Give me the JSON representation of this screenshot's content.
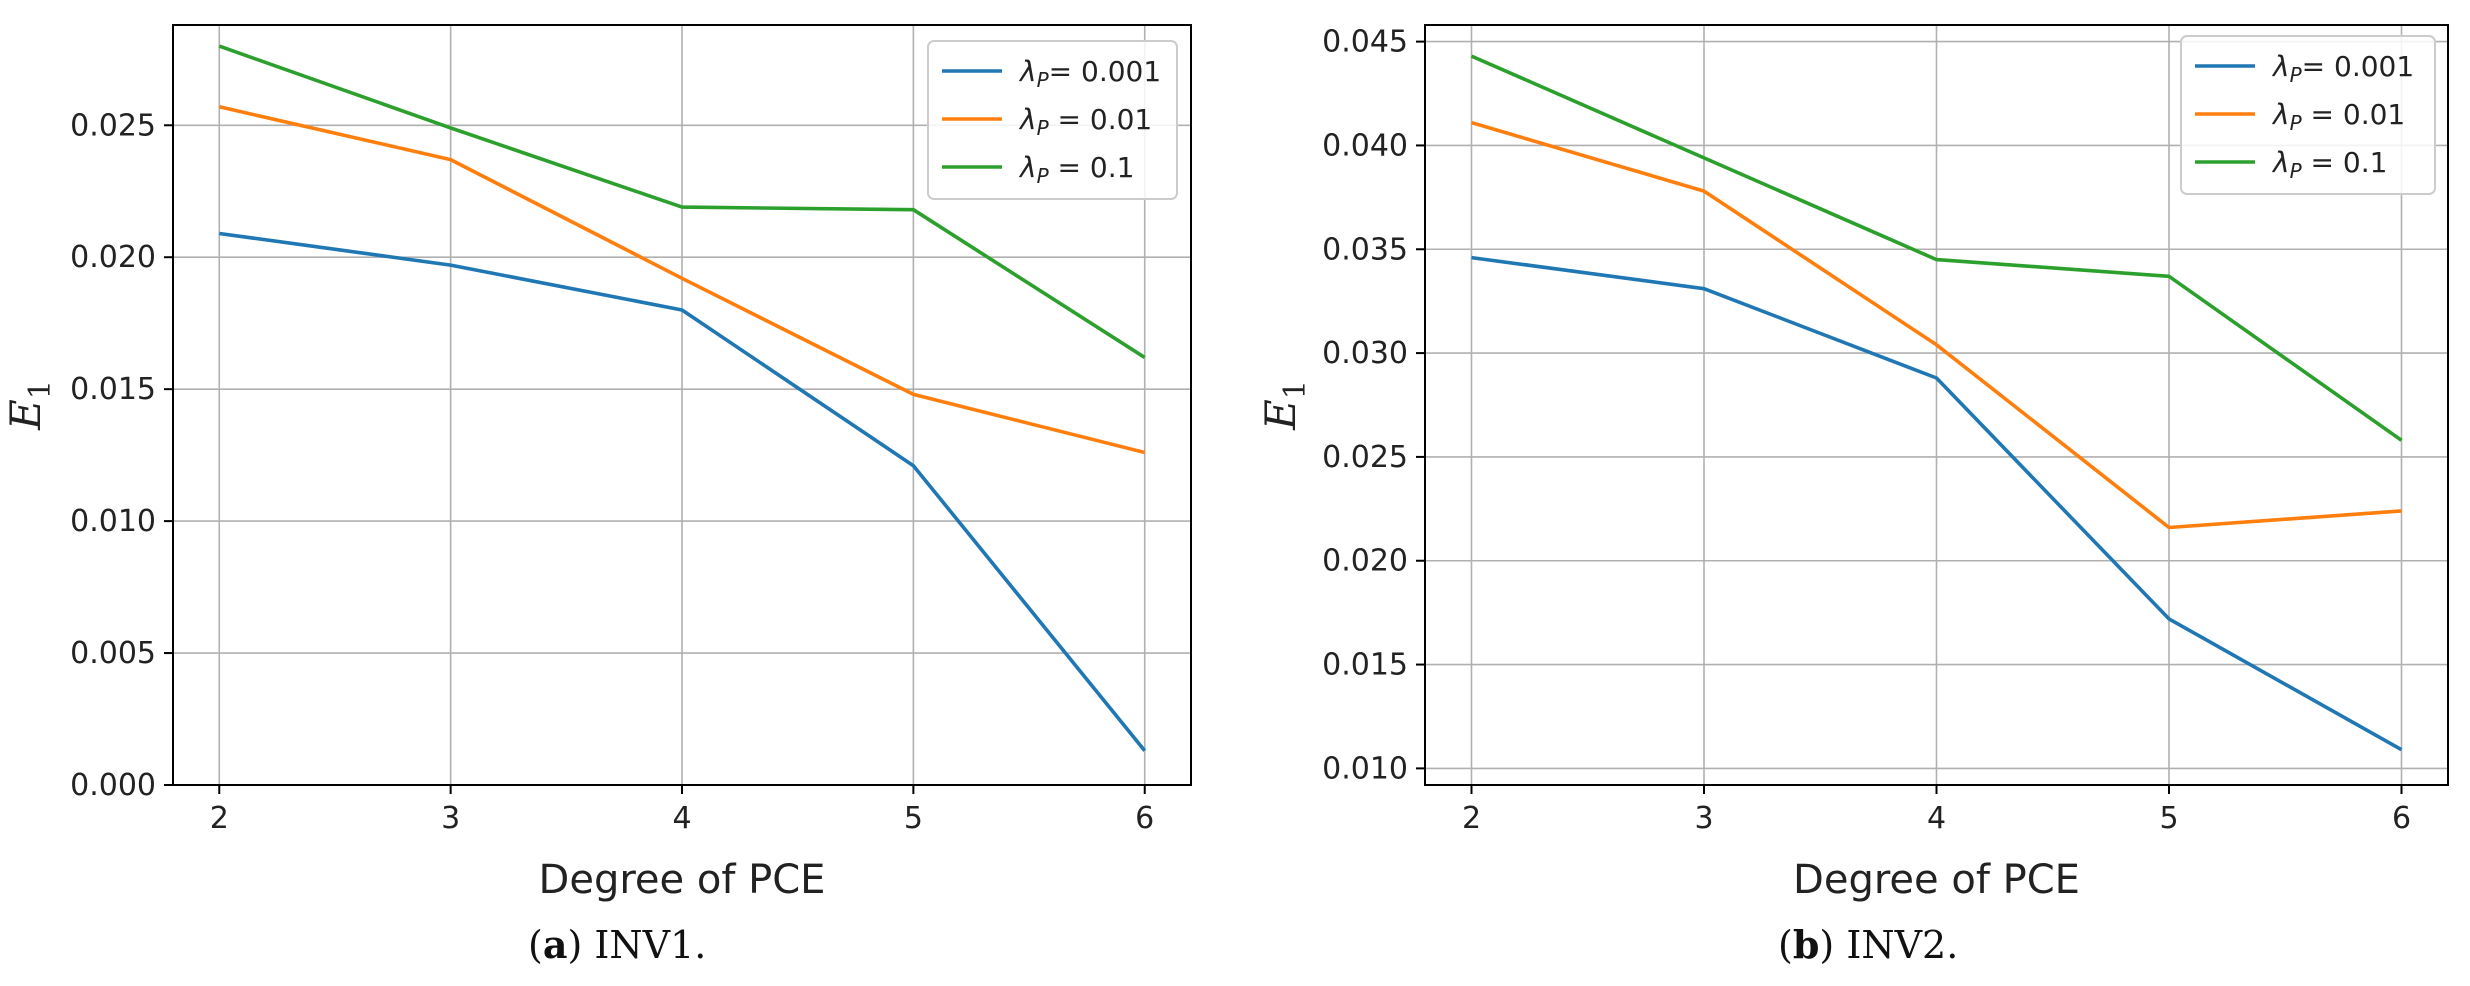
{
  "colors": {
    "series": [
      "#1f77b4",
      "#ff7f0e",
      "#2ca02c"
    ],
    "grid": "#b0b0b0",
    "axis": "#000000",
    "legend_border": "#cccccc"
  },
  "captions": [
    {
      "letter": "a",
      "text": "INV1."
    },
    {
      "letter": "b",
      "text": "INV2."
    }
  ],
  "chart_data": [
    {
      "type": "line",
      "title": "",
      "xlabel": "Degree of PCE",
      "ylabel": "E",
      "ylabel_sub": "1",
      "x": [
        2,
        3,
        4,
        5,
        6
      ],
      "xlim": [
        1.8,
        6.2
      ],
      "ylim": [
        0.0,
        0.0288
      ],
      "xticks": [
        "2",
        "3",
        "4",
        "5",
        "6"
      ],
      "yticks": [
        "0.000",
        "0.005",
        "0.010",
        "0.015",
        "0.020",
        "0.025"
      ],
      "yticks_values": [
        0.0,
        0.005,
        0.01,
        0.015,
        0.02,
        0.025
      ],
      "grid": true,
      "legend_position": "top-right",
      "series": [
        {
          "name": "λP= 0.001",
          "label_base": "λ",
          "label_sub": "P",
          "label_rest": "= 0.001",
          "values": [
            0.0209,
            0.0197,
            0.018,
            0.0121,
            0.0013
          ]
        },
        {
          "name": "λP = 0.01",
          "label_base": "λ",
          "label_sub": "P",
          "label_rest": " = 0.01",
          "values": [
            0.0257,
            0.0237,
            0.0192,
            0.0148,
            0.0126
          ]
        },
        {
          "name": "λP = 0.1",
          "label_base": "λ",
          "label_sub": "P",
          "label_rest": " = 0.1",
          "values": [
            0.028,
            0.0249,
            0.0219,
            0.0218,
            0.0162
          ]
        }
      ]
    },
    {
      "type": "line",
      "title": "",
      "xlabel": "Degree of PCE",
      "ylabel": "E",
      "ylabel_sub": "1",
      "x": [
        2,
        3,
        4,
        5,
        6
      ],
      "xlim": [
        1.8,
        6.2
      ],
      "ylim": [
        0.0092,
        0.0458
      ],
      "xticks": [
        "2",
        "3",
        "4",
        "5",
        "6"
      ],
      "yticks": [
        "0.010",
        "0.015",
        "0.020",
        "0.025",
        "0.030",
        "0.035",
        "0.040",
        "0.045"
      ],
      "yticks_values": [
        0.01,
        0.015,
        0.02,
        0.025,
        0.03,
        0.035,
        0.04,
        0.045
      ],
      "grid": true,
      "legend_position": "top-right",
      "series": [
        {
          "name": "λP= 0.001",
          "label_base": "λ",
          "label_sub": "P",
          "label_rest": "= 0.001",
          "values": [
            0.0346,
            0.0331,
            0.0288,
            0.0172,
            0.0109
          ]
        },
        {
          "name": "λP = 0.01",
          "label_base": "λ",
          "label_sub": "P",
          "label_rest": " = 0.01",
          "values": [
            0.0411,
            0.0378,
            0.0304,
            0.0216,
            0.0224
          ]
        },
        {
          "name": "λP = 0.1",
          "label_base": "λ",
          "label_sub": "P",
          "label_rest": " = 0.1",
          "values": [
            0.0443,
            0.0394,
            0.0345,
            0.0337,
            0.0258
          ]
        }
      ]
    }
  ]
}
